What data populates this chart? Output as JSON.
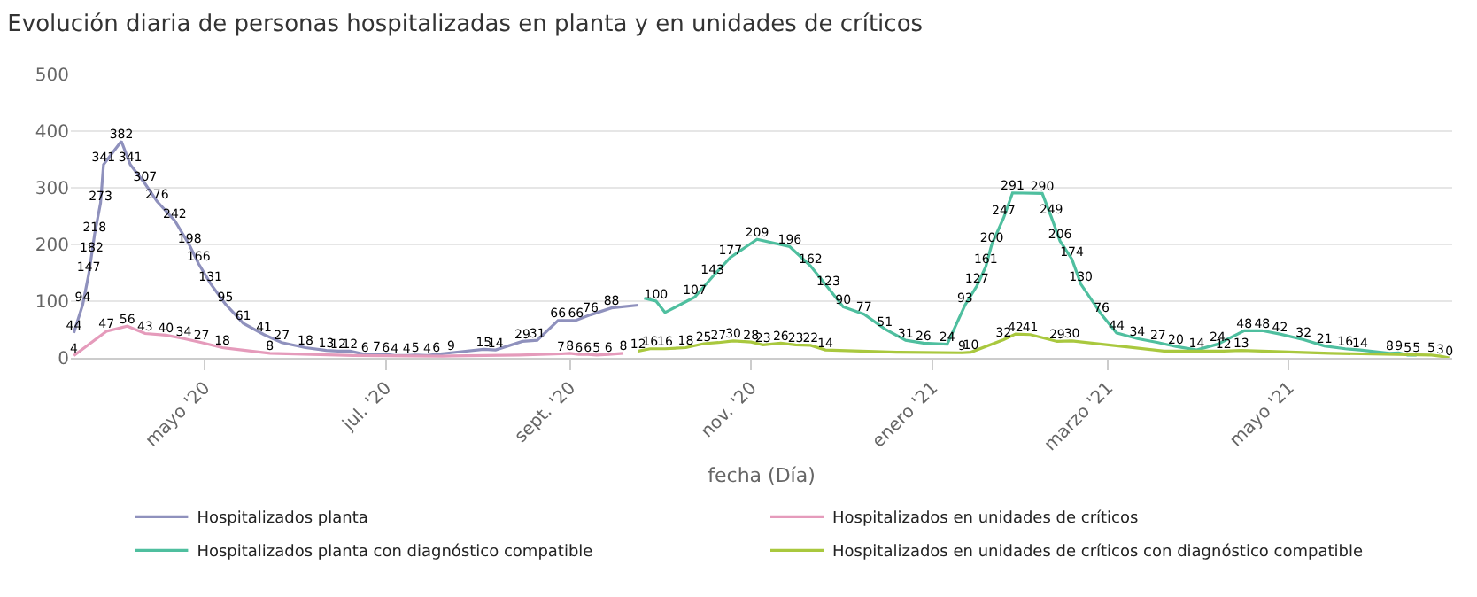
{
  "chart_data": {
    "type": "line",
    "title": "Evolución diaria de personas hospitalizadas en planta y en unidades de críticos",
    "xlabel": "fecha (Día)",
    "xlim": [
      "2020-03-17",
      "2021-06-25"
    ],
    "xticks": [
      {
        "value": "2020-05-01",
        "label": "mayo '20"
      },
      {
        "value": "2020-07-01",
        "label": "jul. '20"
      },
      {
        "value": "2020-09-01",
        "label": "sept. '20"
      },
      {
        "value": "2020-11-01",
        "label": "nov. '20"
      },
      {
        "value": "2021-01-01",
        "label": "enero '21"
      },
      {
        "value": "2021-03-01",
        "label": "marzo '21"
      },
      {
        "value": "2021-05-01",
        "label": "mayo '21"
      }
    ],
    "ylim": [
      0,
      500
    ],
    "yticks": [
      0,
      100,
      200,
      300,
      400,
      500
    ],
    "grid": "y",
    "legend": "bottom",
    "marker": "none",
    "line_style": "solid",
    "series": [
      {
        "name": "Hospitalizados planta",
        "color": "#8f91bd",
        "x": [
          "2020-03-18",
          "2020-03-21",
          "2020-03-23",
          "2020-03-24",
          "2020-03-25",
          "2020-03-27",
          "2020-03-28",
          "2020-04-03",
          "2020-04-06",
          "2020-04-11",
          "2020-04-15",
          "2020-04-21",
          "2020-04-26",
          "2020-04-29",
          "2020-05-03",
          "2020-05-08",
          "2020-05-14",
          "2020-05-21",
          "2020-05-27",
          "2020-06-04",
          "2020-06-11",
          "2020-06-15",
          "2020-06-19",
          "2020-06-24",
          "2020-06-28",
          "2020-07-01",
          "2020-07-04",
          "2020-07-08",
          "2020-07-11",
          "2020-07-15",
          "2020-07-18",
          "2020-07-23",
          "2020-08-03",
          "2020-08-07",
          "2020-08-16",
          "2020-08-21",
          "2020-08-28",
          "2020-09-03",
          "2020-09-08",
          "2020-09-15",
          "2020-09-24"
        ],
        "values": [
          44,
          94,
          147,
          182,
          218,
          273,
          341,
          382,
          341,
          307,
          276,
          242,
          198,
          166,
          131,
          95,
          61,
          41,
          27,
          18,
          13,
          12,
          12,
          6,
          7,
          6,
          4,
          4,
          5,
          4,
          6,
          9,
          15,
          14,
          29,
          31,
          66,
          66,
          76,
          88,
          93
        ],
        "value_labels": [
          "44",
          "94",
          "147",
          "182",
          "218",
          "273",
          "341",
          "382",
          "341",
          "307",
          "276",
          "242",
          "198",
          "166",
          "131",
          "95",
          "61",
          "41",
          "27",
          "18",
          "13",
          "12",
          "12",
          "6",
          "7",
          "6",
          "4",
          "4",
          "5",
          "4",
          "6",
          "9",
          "15",
          "14",
          "29",
          "31",
          "66",
          "66",
          "76",
          "88",
          null
        ]
      },
      {
        "name": "Hospitalizados en unidades de críticos",
        "color": "#e59bbb",
        "x": [
          "2020-03-18",
          "2020-03-29",
          "2020-04-05",
          "2020-04-11",
          "2020-04-18",
          "2020-04-24",
          "2020-04-30",
          "2020-05-07",
          "2020-05-23",
          "2020-06-20",
          "2020-07-20",
          "2020-08-15",
          "2020-08-29",
          "2020-09-01",
          "2020-09-04",
          "2020-09-07",
          "2020-09-10",
          "2020-09-14",
          "2020-09-19"
        ],
        "values": [
          4,
          47,
          56,
          43,
          40,
          34,
          27,
          18,
          8,
          4,
          3,
          5,
          7,
          8,
          6,
          6,
          5,
          6,
          8
        ],
        "value_labels": [
          "4",
          "47",
          "56",
          "43",
          "40",
          "34",
          "27",
          "18",
          "8",
          null,
          null,
          null,
          "7",
          "8",
          "6",
          "6",
          "5",
          "6",
          "8"
        ]
      },
      {
        "name": "Hospitalizados planta con diagnóstico compatible",
        "color": "#4fbf9f",
        "x": [
          "2020-09-26",
          "2020-09-30",
          "2020-10-03",
          "2020-10-13",
          "2020-10-19",
          "2020-10-25",
          "2020-11-03",
          "2020-11-14",
          "2020-11-21",
          "2020-11-27",
          "2020-12-02",
          "2020-12-09",
          "2020-12-16",
          "2020-12-23",
          "2020-12-29",
          "2021-01-06",
          "2021-01-12",
          "2021-01-16",
          "2021-01-19",
          "2021-01-21",
          "2021-01-25",
          "2021-01-28",
          "2021-02-07",
          "2021-02-10",
          "2021-02-13",
          "2021-02-17",
          "2021-02-20",
          "2021-02-27",
          "2021-03-04",
          "2021-03-11",
          "2021-03-18",
          "2021-03-24",
          "2021-03-31",
          "2021-04-07",
          "2021-04-16",
          "2021-04-22",
          "2021-04-28",
          "2021-05-06",
          "2021-05-13",
          "2021-05-20",
          "2021-05-25",
          "2021-06-04",
          "2021-06-07",
          "2021-06-10",
          "2021-06-13"
        ],
        "values": [
          105,
          100,
          80,
          107,
          143,
          177,
          209,
          196,
          162,
          123,
          90,
          77,
          51,
          31,
          26,
          24,
          93,
          127,
          161,
          200,
          247,
          291,
          290,
          249,
          206,
          174,
          130,
          76,
          44,
          34,
          27,
          20,
          14,
          24,
          48,
          48,
          42,
          32,
          21,
          16,
          14,
          8,
          9,
          5,
          5
        ],
        "value_labels": [
          null,
          "100",
          null,
          "107",
          "143",
          "177",
          "209",
          "196",
          "162",
          "123",
          "90",
          "77",
          "51",
          "31",
          "26",
          "24",
          "93",
          "127",
          "161",
          "200",
          "247",
          "291",
          "290",
          "249",
          "206",
          "174",
          "130",
          "76",
          "44",
          "34",
          "27",
          "20",
          "14",
          "24",
          "48",
          "48",
          "42",
          "32",
          "21",
          "16",
          "14",
          "8",
          "9",
          "5",
          "5"
        ]
      },
      {
        "name": "Hospitalizados en unidades de críticos con diagnóstico compatible",
        "color": "#a9c83e",
        "x": [
          "2020-09-24",
          "2020-09-28",
          "2020-10-03",
          "2020-10-10",
          "2020-10-16",
          "2020-10-21",
          "2020-10-26",
          "2020-11-01",
          "2020-11-05",
          "2020-11-11",
          "2020-11-16",
          "2020-11-21",
          "2020-11-26",
          "2020-12-20",
          "2021-01-11",
          "2021-01-14",
          "2021-01-25",
          "2021-01-29",
          "2021-02-03",
          "2021-02-12",
          "2021-02-17",
          "2021-03-20",
          "2021-04-09",
          "2021-04-15",
          "2021-05-15",
          "2021-06-18",
          "2021-06-21",
          "2021-06-24"
        ],
        "values": [
          12,
          16,
          16,
          18,
          25,
          27,
          30,
          28,
          23,
          26,
          23,
          22,
          14,
          10,
          9,
          10,
          32,
          42,
          41,
          29,
          30,
          12,
          12,
          13,
          8,
          5,
          3,
          0
        ],
        "value_labels": [
          "12",
          "16",
          "16",
          "18",
          "25",
          "27",
          "30",
          "28",
          "23",
          "26",
          "23",
          "22",
          "14",
          null,
          "9",
          "10",
          "32",
          "42",
          "41",
          "29",
          "30",
          null,
          "12",
          "13",
          null,
          "5",
          "3",
          "0"
        ]
      }
    ]
  }
}
